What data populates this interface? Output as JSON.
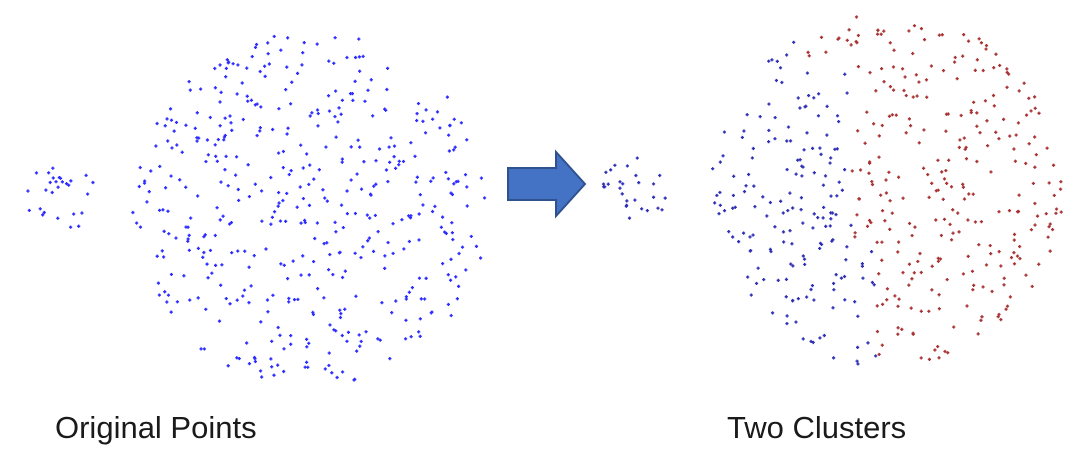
{
  "captions": {
    "left": "Original Points",
    "right": "Two Clusters"
  },
  "colors": {
    "original_points": "#2b2bff",
    "cluster_a": "#2f2fb5",
    "cluster_b": "#a83232",
    "arrow_fill": "#4472c4",
    "arrow_stroke": "#2f528f"
  },
  "icons": {
    "arrow": "right-arrow-icon"
  }
}
